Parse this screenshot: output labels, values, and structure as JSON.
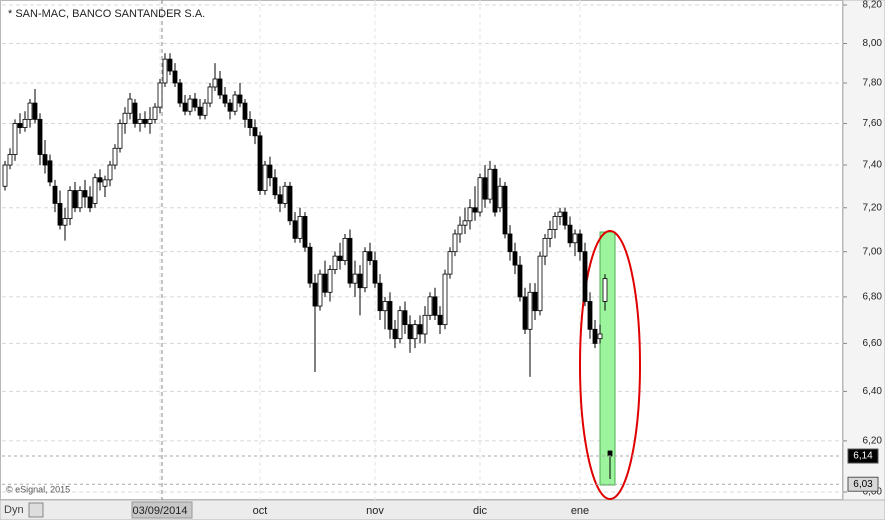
{
  "chart_data": {
    "type": "candlestick",
    "title": "* SAN-MAC, BANCO SANTANDER S.A.",
    "source": "© eSignal, 2015",
    "mode_button": "Dyn",
    "log_scale": true,
    "grid": true,
    "up_color": "#ffffff",
    "down_color": "#000000",
    "categories": [
      null,
      null,
      null,
      null,
      null,
      null,
      null,
      null,
      null,
      null,
      null,
      null,
      null,
      null,
      null,
      null,
      null,
      null,
      null,
      null,
      null,
      null,
      null,
      null,
      null,
      null,
      null,
      null,
      null,
      null,
      null,
      "03/09/2014",
      null,
      null,
      null,
      null,
      null,
      null,
      null,
      null,
      null,
      null,
      null,
      null,
      null,
      null,
      null,
      null,
      null,
      null,
      null,
      "oct",
      null,
      null,
      null,
      null,
      null,
      null,
      null,
      null,
      null,
      null,
      null,
      null,
      null,
      null,
      null,
      null,
      null,
      null,
      null,
      null,
      null,
      null,
      "nov",
      null,
      null,
      null,
      null,
      null,
      null,
      null,
      null,
      null,
      null,
      null,
      null,
      null,
      null,
      null,
      null,
      null,
      null,
      null,
      null,
      "dic",
      null,
      null,
      null,
      null,
      null,
      null,
      null,
      null,
      null,
      null,
      null,
      null,
      null,
      null,
      null,
      null,
      null,
      null,
      null,
      "ene",
      null,
      null,
      null,
      null,
      null,
      null
    ],
    "open": [
      7.3,
      7.4,
      7.45,
      7.6,
      7.58,
      7.62,
      7.7,
      7.62,
      7.45,
      7.42,
      7.3,
      7.22,
      7.12,
      7.15,
      7.28,
      7.2,
      7.28,
      7.25,
      7.22,
      7.34,
      7.3,
      7.33,
      7.4,
      7.48,
      7.6,
      7.65,
      7.7,
      7.6,
      7.62,
      7.6,
      7.62,
      7.68,
      7.8,
      7.92,
      7.86,
      7.8,
      7.7,
      7.66,
      7.72,
      7.68,
      7.64,
      7.7,
      7.78,
      7.82,
      7.74,
      7.7,
      7.66,
      7.74,
      7.7,
      7.62,
      7.58,
      7.54,
      7.28,
      7.4,
      7.34,
      7.26,
      7.22,
      7.3,
      7.14,
      7.06,
      7.16,
      7.02,
      6.86,
      6.76,
      6.9,
      6.82,
      6.92,
      6.98,
      6.96,
      7.06,
      6.86,
      6.9,
      6.84,
      7.0,
      6.96,
      6.86,
      6.74,
      6.78,
      6.66,
      6.62,
      6.74,
      6.68,
      6.62,
      6.68,
      6.64,
      6.72,
      6.8,
      6.72,
      6.68,
      6.9,
      7.0,
      7.08,
      7.12,
      7.14,
      7.2,
      7.18,
      7.34,
      7.24,
      7.38,
      7.2,
      7.3,
      7.08,
      7.0,
      6.94,
      6.8,
      6.66,
      6.82,
      6.74,
      6.98,
      7.06,
      7.1,
      7.16,
      7.18,
      7.12,
      7.04,
      7.08,
      7.0,
      6.78,
      6.66,
      6.62,
      6.78,
      6.16
    ],
    "high": [
      7.42,
      7.48,
      7.62,
      7.65,
      7.66,
      7.72,
      7.77,
      7.65,
      7.52,
      7.45,
      7.33,
      7.28,
      7.2,
      7.3,
      7.32,
      7.3,
      7.33,
      7.3,
      7.36,
      7.38,
      7.35,
      7.42,
      7.5,
      7.62,
      7.68,
      7.75,
      7.72,
      7.65,
      7.66,
      7.68,
      7.7,
      7.82,
      7.95,
      7.95,
      7.9,
      7.82,
      7.74,
      7.74,
      7.75,
      7.72,
      7.72,
      7.8,
      7.9,
      7.86,
      7.78,
      7.72,
      7.76,
      7.8,
      7.72,
      7.66,
      7.62,
      7.56,
      7.42,
      7.44,
      7.38,
      7.3,
      7.32,
      7.32,
      7.18,
      7.2,
      7.18,
      7.04,
      6.9,
      6.92,
      6.96,
      6.94,
      7.0,
      7.04,
      7.08,
      7.1,
      6.96,
      6.94,
      7.02,
      7.04,
      7.0,
      6.9,
      6.8,
      6.82,
      6.7,
      6.76,
      6.78,
      6.72,
      6.7,
      6.72,
      6.76,
      6.82,
      6.84,
      6.76,
      6.92,
      7.02,
      7.1,
      7.16,
      7.2,
      7.24,
      7.3,
      7.36,
      7.4,
      7.42,
      7.4,
      7.34,
      7.32,
      7.12,
      7.04,
      6.98,
      6.84,
      6.86,
      6.86,
      7.0,
      7.08,
      7.14,
      7.18,
      7.2,
      7.2,
      7.16,
      7.1,
      7.1,
      7.04,
      6.82,
      6.7,
      6.68,
      6.9,
      6.16
    ],
    "low": [
      7.28,
      7.38,
      7.42,
      7.55,
      7.56,
      7.58,
      7.6,
      7.4,
      7.36,
      7.3,
      7.18,
      7.1,
      7.05,
      7.12,
      7.18,
      7.18,
      7.2,
      7.18,
      7.2,
      7.28,
      7.25,
      7.3,
      7.38,
      7.46,
      7.55,
      7.62,
      7.58,
      7.56,
      7.58,
      7.55,
      7.6,
      7.65,
      7.78,
      7.84,
      7.78,
      7.68,
      7.64,
      7.64,
      7.66,
      7.62,
      7.62,
      7.68,
      7.76,
      7.72,
      7.68,
      7.62,
      7.64,
      7.68,
      7.58,
      7.54,
      7.5,
      7.26,
      7.26,
      7.3,
      7.24,
      7.18,
      7.2,
      7.12,
      7.04,
      7.04,
      7.0,
      6.84,
      6.48,
      6.74,
      6.8,
      6.78,
      6.9,
      6.92,
      6.94,
      6.84,
      6.8,
      6.72,
      6.82,
      6.94,
      6.84,
      6.7,
      6.66,
      6.62,
      6.58,
      6.6,
      6.64,
      6.56,
      6.58,
      6.6,
      6.6,
      6.7,
      6.7,
      6.64,
      6.66,
      6.88,
      6.98,
      7.04,
      7.08,
      7.1,
      7.14,
      7.16,
      7.2,
      7.22,
      7.16,
      7.18,
      7.06,
      6.96,
      6.9,
      6.78,
      6.64,
      6.46,
      6.7,
      6.72,
      6.94,
      7.02,
      7.06,
      7.12,
      7.1,
      7.02,
      6.98,
      6.96,
      6.76,
      6.62,
      6.58,
      6.6,
      6.74,
      6.05
    ],
    "close": [
      7.4,
      7.45,
      7.6,
      7.58,
      7.62,
      7.7,
      7.62,
      7.45,
      7.4,
      7.32,
      7.22,
      7.12,
      7.15,
      7.28,
      7.2,
      7.28,
      7.25,
      7.2,
      7.34,
      7.32,
      7.33,
      7.4,
      7.48,
      7.6,
      7.65,
      7.72,
      7.6,
      7.62,
      7.6,
      7.62,
      7.68,
      7.8,
      7.92,
      7.86,
      7.8,
      7.7,
      7.66,
      7.72,
      7.68,
      7.64,
      7.7,
      7.78,
      7.82,
      7.74,
      7.7,
      7.66,
      7.74,
      7.7,
      7.62,
      7.58,
      7.54,
      7.28,
      7.4,
      7.34,
      7.26,
      7.22,
      7.3,
      7.14,
      7.06,
      7.16,
      7.02,
      6.86,
      6.76,
      6.9,
      6.82,
      6.92,
      6.98,
      6.96,
      7.06,
      6.86,
      6.9,
      6.84,
      7.0,
      6.96,
      6.86,
      6.74,
      6.78,
      6.66,
      6.62,
      6.74,
      6.68,
      6.62,
      6.68,
      6.64,
      6.72,
      6.8,
      6.72,
      6.68,
      6.9,
      7.0,
      7.08,
      7.12,
      7.14,
      7.2,
      7.18,
      7.34,
      7.24,
      7.38,
      7.18,
      7.3,
      7.08,
      7.0,
      6.94,
      6.8,
      6.66,
      6.82,
      6.74,
      6.98,
      7.06,
      7.1,
      7.16,
      7.18,
      7.12,
      7.04,
      7.08,
      7.0,
      6.78,
      6.66,
      6.6,
      6.64,
      6.88,
      6.14
    ],
    "ylim": [
      6.0,
      8.2
    ],
    "yticks": [
      {
        "value": 6.0,
        "label": "6,00"
      },
      {
        "value": 6.2,
        "label": "6,20"
      },
      {
        "value": 6.4,
        "label": "6,40"
      },
      {
        "value": 6.6,
        "label": "6,60"
      },
      {
        "value": 6.8,
        "label": "6,80"
      },
      {
        "value": 7.0,
        "label": "7,00"
      },
      {
        "value": 7.2,
        "label": "7,20"
      },
      {
        "value": 7.4,
        "label": "7,40"
      },
      {
        "value": 7.6,
        "label": "7,60"
      },
      {
        "value": 7.8,
        "label": "7,80"
      },
      {
        "value": 8.0,
        "label": "8,00"
      },
      {
        "value": 8.2,
        "label": "8,20"
      }
    ],
    "price_markers": [
      {
        "value": 6.14,
        "label": "6,14",
        "color": "#000000"
      },
      {
        "value": 6.03,
        "label": "6,03",
        "color": "#d8d8d8"
      }
    ]
  }
}
